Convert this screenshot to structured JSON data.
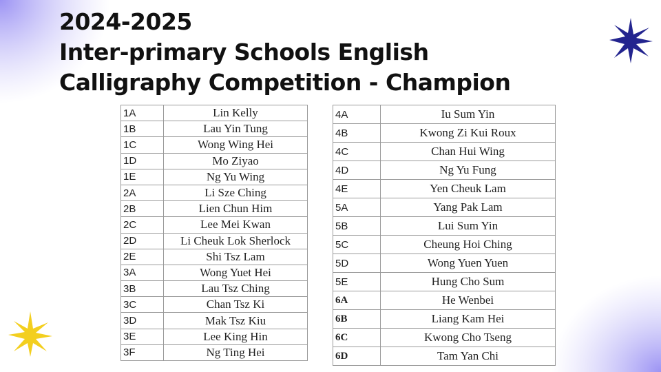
{
  "title": [
    "2024-2025",
    "Inter-primary Schools English",
    "Calligraphy Competition - Champion"
  ],
  "tables": [
    {
      "rows": [
        [
          "1A",
          "Lin Kelly"
        ],
        [
          "1B",
          "Lau Yin Tung"
        ],
        [
          "1C",
          "Wong Wing Hei"
        ],
        [
          "1D",
          "Mo Ziyao"
        ],
        [
          "1E",
          "Ng Yu Wing"
        ],
        [
          "2A",
          "Li Sze Ching"
        ],
        [
          "2B",
          "Lien Chun Him"
        ],
        [
          "2C",
          "Lee Mei Kwan"
        ],
        [
          "2D",
          "Li Cheuk Lok Sherlock"
        ],
        [
          "2E",
          "Shi Tsz Lam"
        ],
        [
          "3A",
          "Wong Yuet Hei"
        ],
        [
          "3B",
          "Lau Tsz Ching"
        ],
        [
          "3C",
          "Chan Tsz Ki"
        ],
        [
          "3D",
          "Mak Tsz Kiu"
        ],
        [
          "3E",
          "Lee King Hin"
        ],
        [
          "3F",
          "Ng Ting Hei"
        ]
      ]
    },
    {
      "rows": [
        [
          "4A",
          "Iu Sum Yin"
        ],
        [
          "4B",
          "Kwong Zi Kui Roux"
        ],
        [
          "4C",
          "Chan Hui Wing"
        ],
        [
          "4D",
          "Ng Yu Fung"
        ],
        [
          "4E",
          "Yen Cheuk Lam"
        ],
        [
          "5A",
          "Yang Pak Lam"
        ],
        [
          "5B",
          "Lui Sum Yin"
        ],
        [
          "5C",
          "Cheung Hoi Ching"
        ],
        [
          "5D",
          "Wong Yuen Yuen"
        ],
        [
          "5E",
          "Hung Cho Sum"
        ],
        [
          "6A",
          "He Wenbei"
        ],
        [
          "6B",
          "Liang Kam Hei"
        ],
        [
          "6C",
          "Kwong Cho Tseng"
        ],
        [
          "6D",
          "Tam Yan Chi"
        ]
      ]
    }
  ]
}
